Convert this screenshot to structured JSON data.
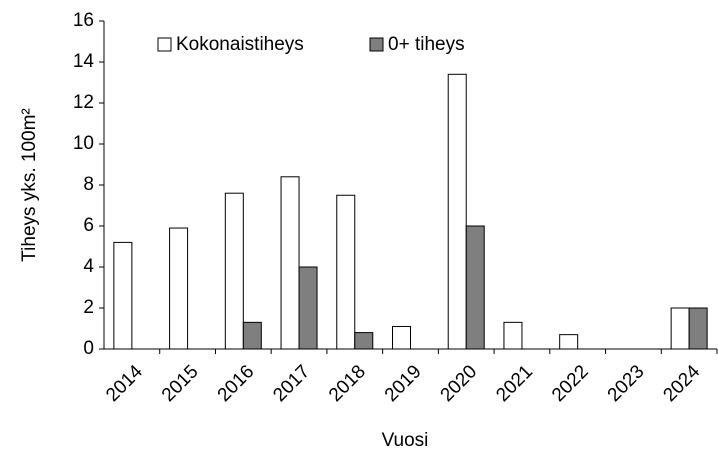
{
  "chart_data": {
    "type": "bar",
    "categories": [
      "2014",
      "2015",
      "2016",
      "2017",
      "2018",
      "2019",
      "2020",
      "2021",
      "2022",
      "2023",
      "2024"
    ],
    "series": [
      {
        "name": "Kokonaistiheys",
        "color": "#ffffff",
        "values": [
          5.2,
          5.9,
          7.6,
          8.4,
          7.5,
          1.1,
          13.4,
          1.3,
          0.7,
          0,
          2.0
        ]
      },
      {
        "name": "0+ tiheys",
        "color": "#7f7f7f",
        "values": [
          0,
          0,
          1.3,
          4.0,
          0.8,
          0,
          6.0,
          0,
          0,
          0,
          2.0
        ]
      }
    ],
    "x_label": "Vuosi",
    "y_label": "Tiheys yks. 100m²",
    "ylim": [
      0,
      16
    ],
    "yticks": [
      0,
      2,
      4,
      6,
      8,
      10,
      12,
      14,
      16
    ],
    "grid": false,
    "legend": "top"
  }
}
